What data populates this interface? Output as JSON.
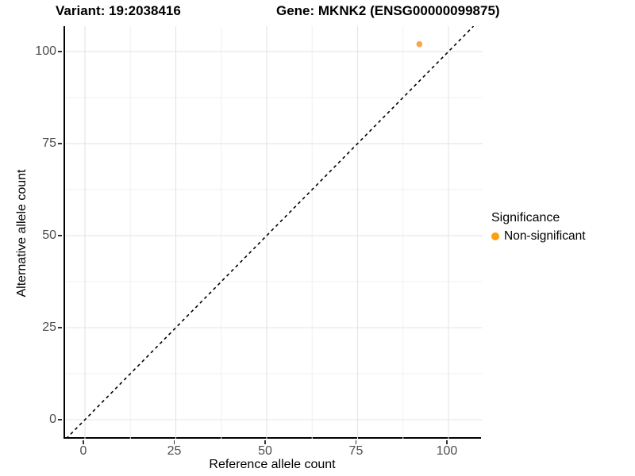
{
  "titles": {
    "variant": "Variant: 19:2038416",
    "gene": "Gene: MKNK2 (ENSG00000099875)"
  },
  "axes": {
    "x": {
      "label": "Reference allele count",
      "tick_labels": [
        "0",
        "25",
        "50",
        "75",
        "100"
      ]
    },
    "y": {
      "label": "Alternative allele count",
      "tick_labels": [
        "0",
        "25",
        "50",
        "75",
        "100"
      ]
    }
  },
  "legend": {
    "title": "Significance",
    "items": [
      {
        "label": "Non-significant",
        "color": "#FF9E0D"
      }
    ]
  },
  "colors": {
    "point": "#F9A64A",
    "legend_swatch": "#FF9E0D",
    "grid_major": "#E4E4E4",
    "grid_minor": "#F0F0F0",
    "axis_line": "#000000",
    "reference_line": "#000000"
  },
  "chart_data": {
    "type": "scatter",
    "title": "Variant: 19:2038416   Gene: MKNK2 (ENSG00000099875)",
    "xlabel": "Reference allele count",
    "ylabel": "Alternative allele count",
    "xlim": [
      -5.46,
      109.4
    ],
    "ylim": [
      -5.17,
      106.9
    ],
    "x_ticks": [
      0,
      25,
      50,
      75,
      100
    ],
    "y_ticks": [
      0,
      25,
      50,
      75,
      100
    ],
    "x_minor_ticks": [
      12.5,
      37.5,
      62.5,
      87.5
    ],
    "y_minor_ticks": [
      12.5,
      37.5,
      62.5,
      87.5
    ],
    "grid": "major+minor",
    "legend_position": "right",
    "series": [
      {
        "name": "Non-significant",
        "color": "#F9A64A",
        "points": [
          {
            "x": 92,
            "y": 102
          }
        ],
        "point_radius": 3.8
      }
    ],
    "reference_line": {
      "type": "identity",
      "slope": 1,
      "intercept": 0,
      "style": "dashed"
    }
  }
}
